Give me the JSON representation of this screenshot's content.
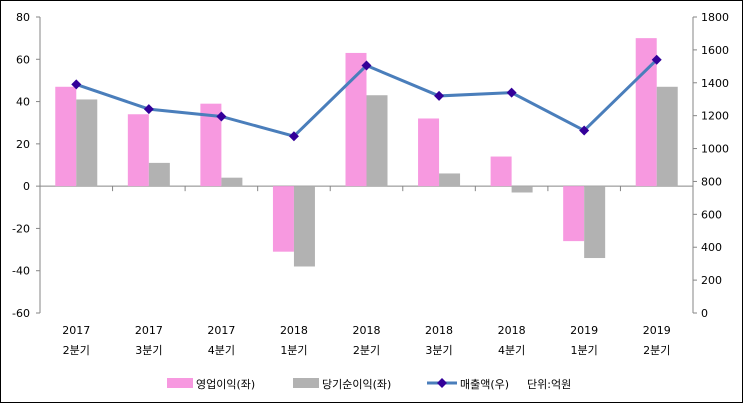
{
  "chart_data": {
    "type": "bar",
    "title": "",
    "categories": [
      [
        "2017",
        "2분기"
      ],
      [
        "2017",
        "3분기"
      ],
      [
        "2017",
        "4분기"
      ],
      [
        "2018",
        "1분기"
      ],
      [
        "2018",
        "2분기"
      ],
      [
        "2018",
        "3분기"
      ],
      [
        "2018",
        "4분기"
      ],
      [
        "2019",
        "1분기"
      ],
      [
        "2019",
        "2분기"
      ]
    ],
    "series": [
      {
        "name": "영업이익(좌)",
        "type": "bar",
        "axis": "left",
        "color": "#f799e0",
        "values": [
          47,
          34,
          39,
          -31,
          63,
          32,
          14,
          -26,
          70
        ]
      },
      {
        "name": "당기순이익(좌)",
        "type": "bar",
        "axis": "left",
        "color": "#b2b2b2",
        "values": [
          41,
          11,
          4,
          -38,
          43,
          6,
          -3,
          -34,
          47
        ]
      },
      {
        "name": "매출액(우)",
        "type": "line",
        "axis": "right",
        "color": "#4a7ebb",
        "marker_color": "#330099",
        "values": [
          1390,
          1240,
          1195,
          1075,
          1505,
          1320,
          1340,
          1110,
          1540
        ]
      }
    ],
    "left_axis": {
      "ylim": [
        -60,
        80
      ],
      "ticks": [
        80,
        60,
        40,
        20,
        0,
        -20,
        -40,
        -60
      ]
    },
    "right_axis": {
      "ylim": [
        0,
        1800
      ],
      "ticks": [
        1800,
        1600,
        1400,
        1200,
        1000,
        800,
        600,
        400,
        200,
        0
      ]
    },
    "unit_note": "단위:억원",
    "legend_position": "bottom",
    "grid": false
  }
}
